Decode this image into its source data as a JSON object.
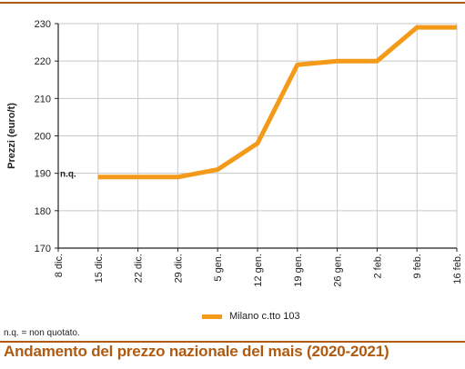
{
  "caption": "Andamento del prezzo nazionale del mais (2020-2021)",
  "footnote": "n.q. = non quotato.",
  "colors": {
    "accent": "#b05a10",
    "line": "#f39a18",
    "grid": "#c8c8c8",
    "axis": "#222222"
  },
  "chart_data": {
    "type": "line",
    "title": "",
    "xlabel": "",
    "ylabel": "Prezzi (euro/t)",
    "categories": [
      "8 dic.",
      "15 dic.",
      "22 dic.",
      "29 dic.",
      "5 gen.",
      "12 gen.",
      "19 gen.",
      "26 gen.",
      "2 feb.",
      "9 feb.",
      "16 feb."
    ],
    "ylim": [
      170,
      230
    ],
    "yticks": [
      170,
      180,
      190,
      200,
      210,
      220,
      230
    ],
    "grid": true,
    "legend": "bottom",
    "annotations": [
      {
        "text": "n.q.",
        "category": "8 dic.",
        "y": 190
      }
    ],
    "series": [
      {
        "name": "Milano  c.tto 103",
        "values": [
          null,
          189,
          189,
          189,
          191,
          198,
          219,
          220,
          220,
          229,
          229
        ]
      }
    ]
  }
}
